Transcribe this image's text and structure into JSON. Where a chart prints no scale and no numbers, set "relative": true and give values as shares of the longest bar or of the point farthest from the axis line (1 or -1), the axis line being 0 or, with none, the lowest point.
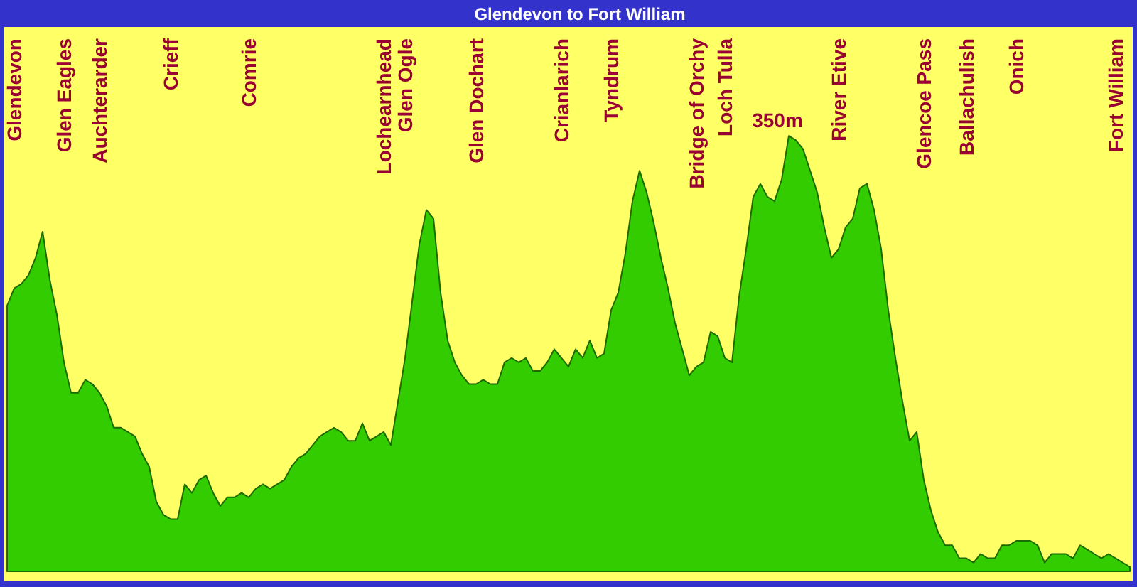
{
  "chart_data": {
    "type": "area",
    "title": "Glendevon to Fort William",
    "relative": true,
    "color": "#33cc00",
    "categories": [
      null,
      "Glendevon",
      null,
      null,
      null,
      null,
      null,
      null,
      "Glen Eagles",
      null,
      null,
      null,
      null,
      "Auchterarder",
      null,
      null,
      null,
      null,
      null,
      null,
      null,
      null,
      null,
      "Crieff",
      null,
      null,
      null,
      null,
      null,
      null,
      null,
      null,
      null,
      null,
      "Comrie",
      null,
      null,
      null,
      null,
      null,
      null,
      null,
      null,
      null,
      null,
      null,
      null,
      null,
      null,
      null,
      null,
      null,
      null,
      "Lochearnhead",
      null,
      null,
      "Glen Ogle",
      null,
      null,
      null,
      null,
      null,
      null,
      null,
      null,
      null,
      "Glen Dochart",
      null,
      null,
      null,
      null,
      null,
      null,
      null,
      null,
      null,
      null,
      null,
      "Crianlarich",
      null,
      null,
      null,
      null,
      null,
      null,
      "Tyndrum",
      null,
      null,
      null,
      null,
      null,
      null,
      null,
      null,
      null,
      null,
      null,
      "Bridge of Orchy",
      null,
      null,
      null,
      "Loch Tulla",
      null,
      null,
      null,
      null,
      null,
      null,
      null,
      null,
      null,
      null,
      null,
      null,
      null,
      null,
      null,
      "River Etive",
      null,
      null,
      null,
      null,
      null,
      null,
      null,
      null,
      null,
      null,
      null,
      "Glencoe Pass",
      null,
      null,
      null,
      null,
      null,
      "Ballachulish",
      null,
      null,
      null,
      null,
      null,
      null,
      "Onich",
      null,
      null,
      null,
      null,
      null,
      null,
      null,
      null,
      null,
      null,
      null,
      null,
      null,
      "Fort William",
      null,
      null
    ],
    "values": [
      0.61,
      0.65,
      0.66,
      0.68,
      0.72,
      0.78,
      0.67,
      0.59,
      0.48,
      0.41,
      0.41,
      0.44,
      0.43,
      0.41,
      0.38,
      0.33,
      0.33,
      0.32,
      0.31,
      0.27,
      0.24,
      0.16,
      0.13,
      0.12,
      0.12,
      0.2,
      0.18,
      0.21,
      0.22,
      0.18,
      0.15,
      0.17,
      0.17,
      0.18,
      0.17,
      0.19,
      0.2,
      0.19,
      0.2,
      0.21,
      0.24,
      0.26,
      0.27,
      0.29,
      0.31,
      0.32,
      0.33,
      0.32,
      0.3,
      0.3,
      0.34,
      0.3,
      0.31,
      0.32,
      0.29,
      0.39,
      0.49,
      0.62,
      0.75,
      0.83,
      0.81,
      0.64,
      0.53,
      0.48,
      0.45,
      0.43,
      0.43,
      0.44,
      0.43,
      0.43,
      0.48,
      0.49,
      0.48,
      0.49,
      0.46,
      0.46,
      0.48,
      0.51,
      0.49,
      0.47,
      0.51,
      0.49,
      0.53,
      0.49,
      0.5,
      0.6,
      0.64,
      0.73,
      0.85,
      0.92,
      0.87,
      0.8,
      0.72,
      0.65,
      0.57,
      0.51,
      0.45,
      0.47,
      0.48,
      0.55,
      0.54,
      0.49,
      0.48,
      0.63,
      0.74,
      0.86,
      0.89,
      0.86,
      0.85,
      0.9,
      1,
      0.99,
      0.97,
      0.92,
      0.87,
      0.79,
      0.72,
      0.74,
      0.79,
      0.81,
      0.88,
      0.89,
      0.83,
      0.74,
      0.6,
      0.49,
      0.39,
      0.3,
      0.32,
      0.21,
      0.14,
      0.09,
      0.06,
      0.06,
      0.03,
      0.03,
      0.02,
      0.04,
      0.03,
      0.03,
      0.06,
      0.06,
      0.07,
      0.07,
      0.07,
      0.06,
      0.02,
      0.04,
      0.04,
      0.04,
      0.03,
      0.06,
      0.05,
      0.04,
      0.03,
      0.04,
      0.03,
      0.02,
      0.01
    ],
    "annotations": [
      "350m"
    ]
  }
}
